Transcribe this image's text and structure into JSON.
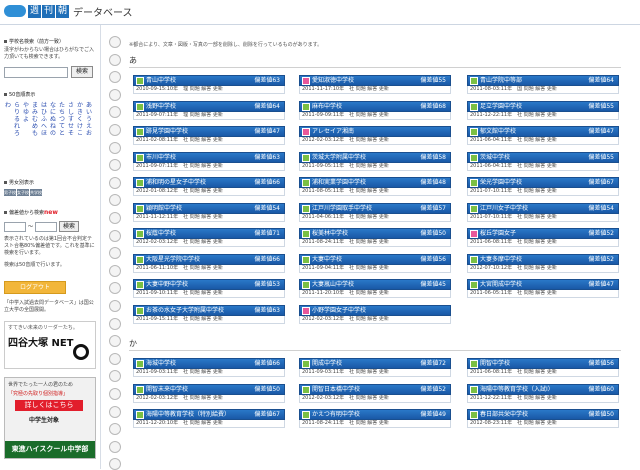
{
  "header": {
    "logo_chars": [
      "週",
      "刊",
      "朝"
    ],
    "title": "データベース"
  },
  "sidebar": {
    "school_search_title": "学校名検索（前方一致）",
    "school_search_help": "漢字がわからない場合はひらがなでご入力頂いても検索できます。",
    "search_button": "検索",
    "kana_title": "50音順表示",
    "kana_columns": [
      [
        "あ",
        "い",
        "う",
        "え",
        "お"
      ],
      [
        "か",
        "き",
        "く",
        "け",
        "こ"
      ],
      [
        "さ",
        "し",
        "す",
        "せ",
        "そ"
      ],
      [
        "た",
        "ち",
        "つ",
        "て",
        "と"
      ],
      [
        "な",
        "に",
        "ぬ",
        "ね",
        "の"
      ],
      [
        "は",
        "ひ",
        "ふ",
        "へ",
        "ほ"
      ],
      [
        "ま",
        "み",
        "む",
        "め",
        "も"
      ],
      [
        "や",
        "ゆ",
        "よ"
      ],
      [
        "ら",
        "り",
        "る",
        "れ",
        "ろ"
      ],
      [
        "わ"
      ]
    ],
    "pref_title": "男女別表示",
    "pref_items": [
      "男子校",
      "女子校",
      "共学校"
    ],
    "deviation_title": "偏差値から検索",
    "deviation_new": "new",
    "range_sep": "〜",
    "deviation_help": "表示されているのは第1回合不合判定テスト合格80%偏差値です。これを基準に検索を行います。",
    "deviation_note": "検索は50音順で行います。",
    "login_button": "ログアウト",
    "footer_text": "「中学入試過去問データベース」は国公立大学の全国展開。",
    "ad1": {
      "line1": "すてきい未来のリーダーたち。",
      "line2": "四谷大塚 NET"
    },
    "ad2": {
      "line1": "世界でたった一人の君のため",
      "line2": "「究極の先取り個別指導」",
      "cta": "詳しくはこちら",
      "target": "中学生対象",
      "brand": "東進ハイスクール中学部"
    }
  },
  "main": {
    "notice": "※都合により、文章・図版・写真の一部を削除し、削除を行っているものがあります。",
    "sections": [
      {
        "heading": "あ",
        "cards": [
          {
            "name": "青山中学校",
            "deviation": "偏差値63",
            "meta": "2010-09-15:10年　理 問題 解答 更新",
            "icon": "g"
          },
          {
            "name": "愛知淑徳中学校",
            "deviation": "偏差値55",
            "meta": "2011-11-17:10年　社 問題 解答 更新",
            "icon": "p"
          },
          {
            "name": "青山学院中等部",
            "deviation": "偏差値64",
            "meta": "2011-08-03:11年　国 問題 解答 更新",
            "icon": "g"
          },
          {
            "name": "浅野中学校",
            "deviation": "偏差値64",
            "meta": "2011-09-07:11年　理 問題 解答 更新",
            "icon": "g"
          },
          {
            "name": "麻布中学校",
            "deviation": "偏差値68",
            "meta": "2011-09-09:11年　社 問題 解答 更新",
            "icon": "g"
          },
          {
            "name": "足立学園中学校",
            "deviation": "偏差値55",
            "meta": "2011-12-22:11年　社 問題 解答 更新",
            "icon": "g"
          },
          {
            "name": "跡見学園中学校",
            "deviation": "偏差値47",
            "meta": "2011-02-08:11年　社 問題 解答 更新",
            "icon": "g"
          },
          {
            "name": "アレセイア湘南",
            "deviation": "",
            "meta": "2012-02-03:12年　社 問題 解答 更新",
            "icon": "p"
          },
          {
            "name": "郁文館中学校",
            "deviation": "偏差値47",
            "meta": "2011-06-04:11年　社 問題 解答 更新",
            "icon": "g"
          },
          {
            "name": "市川中学校",
            "deviation": "偏差値63",
            "meta": "2011-09-07:11年　社 問題 解答 更新",
            "icon": "g"
          },
          {
            "name": "茨城大学附属中学校",
            "deviation": "偏差値58",
            "meta": "2011-09-05:11年　社 問題 解答 更新",
            "icon": "g"
          },
          {
            "name": "茨城中学校",
            "deviation": "偏差値55",
            "meta": "2011-06-04:11年　社 問題 解答 更新",
            "icon": "g"
          },
          {
            "name": "浦和明の星女子中学校",
            "deviation": "偏差値66",
            "meta": "2012-01-08:12年　社 問題 解答 更新",
            "icon": "g"
          },
          {
            "name": "浦和実業学園中学校",
            "deviation": "偏差値48",
            "meta": "2011-08-05:11年　社 問題 解答 更新",
            "icon": "g"
          },
          {
            "name": "栄光学園中学校",
            "deviation": "偏差値67",
            "meta": "2011-07-10:11年　社 問題 解答 更新",
            "icon": "g"
          },
          {
            "name": "穎明館中学校",
            "deviation": "偏差値54",
            "meta": "2011-11-12:11年　社 問題 解答 更新",
            "icon": "g"
          },
          {
            "name": "江戸川学園取手中学校",
            "deviation": "偏差値57",
            "meta": "2011-04-06:11年　社 問題 解答 更新",
            "icon": "g"
          },
          {
            "name": "江戸川女子中学校",
            "deviation": "偏差値54",
            "meta": "2011-07-10:11年　社 問題 解答 更新",
            "icon": "g"
          },
          {
            "name": "桜蔭中学校",
            "deviation": "偏差値71",
            "meta": "2012-02-03:12年　社 問題 解答 更新",
            "icon": "g"
          },
          {
            "name": "桜美林中学校",
            "deviation": "偏差値50",
            "meta": "2011-08-24:11年　社 問題 解答 更新",
            "icon": "g"
          },
          {
            "name": "桜丘学園女子",
            "deviation": "偏差値52",
            "meta": "2011-06-08:11年　社 問題 解答 更新",
            "icon": "p"
          },
          {
            "name": "大阪星光学院中学校",
            "deviation": "偏差値66",
            "meta": "2011-06-11:10年　社 問題 解答 更新",
            "icon": "g"
          },
          {
            "name": "大妻中学校",
            "deviation": "偏差値56",
            "meta": "2011-09-04:11年　社 問題 解答 更新",
            "icon": "g"
          },
          {
            "name": "大妻多摩中学校",
            "deviation": "偏差値52",
            "meta": "2012-07-10:12年　社 問題 解答 更新",
            "icon": "g"
          },
          {
            "name": "大妻中野中学校",
            "deviation": "偏差値53",
            "meta": "2011-09-10:11年　社 問題 解答 更新",
            "icon": "g"
          },
          {
            "name": "大妻嵐山中学校",
            "deviation": "偏差値45",
            "meta": "2011-11-20:10年　社 問題 解答 更新",
            "icon": "g"
          },
          {
            "name": "大宮開成中学校",
            "deviation": "偏差値47",
            "meta": "2011-06-05:11年　社 問題 解答 更新",
            "icon": "g"
          },
          {
            "name": "お茶の水女子大学附属中学校",
            "deviation": "偏差値63",
            "meta": "2011-09-15:11年　社 問題 解答 更新",
            "icon": "g"
          },
          {
            "name": "小野学園女子中学校",
            "deviation": "",
            "meta": "2012-02-03:12年　社 問題 解答 更新",
            "icon": "p"
          }
        ]
      },
      {
        "heading": "か",
        "cards": [
          {
            "name": "海城中学校",
            "deviation": "偏差値66",
            "meta": "2011-09-03:11年　社 問題 解答 更新",
            "icon": "g"
          },
          {
            "name": "開成中学校",
            "deviation": "偏差値72",
            "meta": "2011-09-03:11年　社 問題 解答 更新",
            "icon": "g"
          },
          {
            "name": "開智中学校",
            "deviation": "偏差値56",
            "meta": "2011-06-08:11年　社 問題 解答 更新",
            "icon": "g"
          },
          {
            "name": "開智未来中学校",
            "deviation": "偏差値50",
            "meta": "2012-02-03:12年　社 問題 解答 更新",
            "icon": "g"
          },
          {
            "name": "開智日本橋中学校",
            "deviation": "偏差値52",
            "meta": "2012-02-03:12年　社 問題 解答 更新",
            "icon": "g"
          },
          {
            "name": "海陽中等教育学校（入試I）",
            "deviation": "偏差値60",
            "meta": "2011-12-22:11年　社 問題 解答 更新",
            "icon": "g"
          },
          {
            "name": "海陽中等教育学校（特別給費）",
            "deviation": "偏差値67",
            "meta": "2011-12-20:10年　社 問題 解答 更新",
            "icon": "g"
          },
          {
            "name": "かえつ有明中学校",
            "deviation": "偏差値49",
            "meta": "2011-08-24:11年　社 問題 解答 更新",
            "icon": "g"
          },
          {
            "name": "春日部共栄中学校",
            "deviation": "偏差値50",
            "meta": "2012-08-23:11年　社 問題 解答 更新",
            "icon": "g"
          }
        ]
      }
    ]
  }
}
